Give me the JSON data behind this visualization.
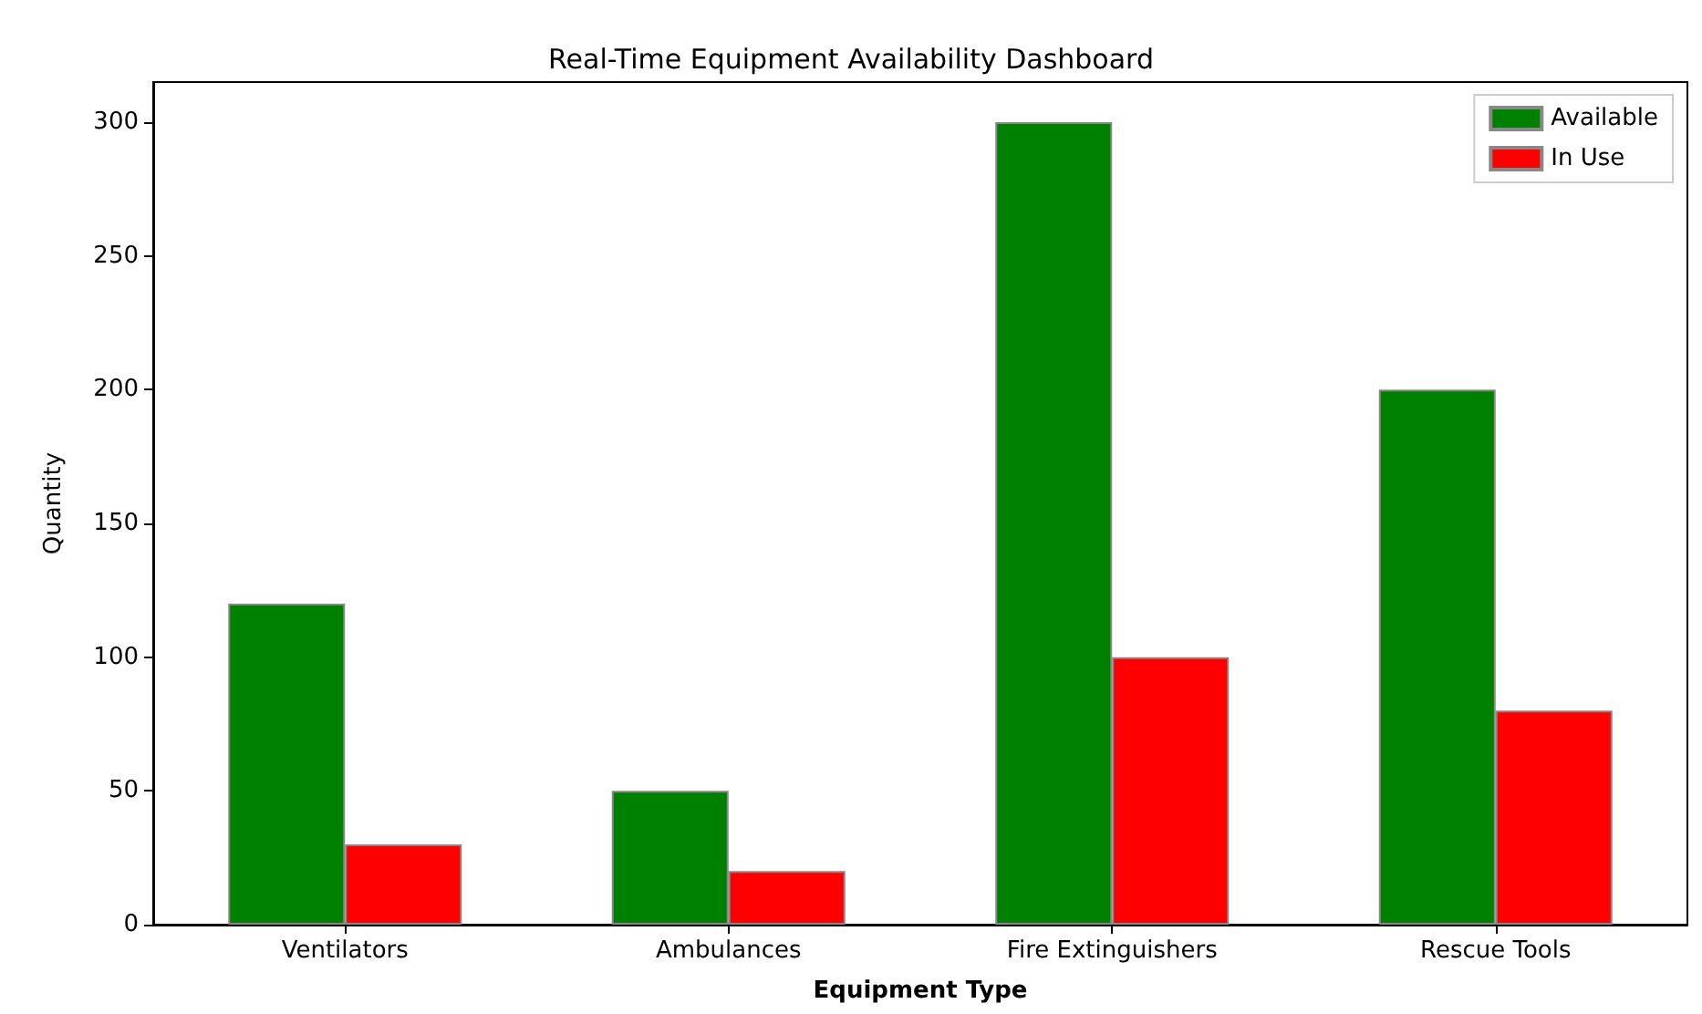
{
  "chart_data": {
    "type": "bar",
    "title": "Real-Time Equipment Availability Dashboard",
    "xlabel": "Equipment Type",
    "ylabel": "Quantity",
    "categories": [
      "Ventilators",
      "Ambulances",
      "Fire Extinguishers",
      "Rescue Tools"
    ],
    "series": [
      {
        "name": "Available",
        "color": "#008000",
        "values": [
          120,
          50,
          300,
          200
        ]
      },
      {
        "name": "In Use",
        "color": "#ff0000",
        "values": [
          30,
          20,
          100,
          80
        ]
      }
    ],
    "ylim": [
      0,
      315
    ],
    "yticks": [
      0,
      50,
      100,
      150,
      200,
      250,
      300
    ],
    "grid": false,
    "legend": "top right"
  }
}
